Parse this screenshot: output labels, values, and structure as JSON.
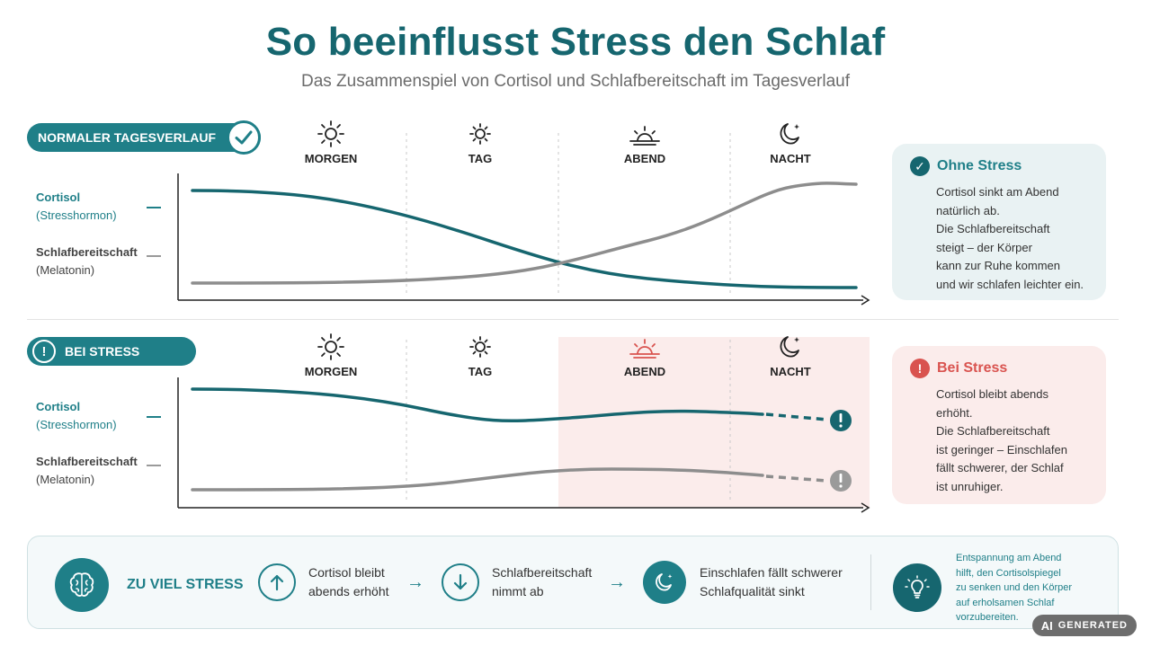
{
  "title": "So beeinflusst Stress den Schlaf",
  "subtitle": "Das Zusammenspiel von Cortisol und Schlafbereitschaft im Tagesverlauf",
  "colors": {
    "teal": "#1f7f88",
    "dark_teal": "#16666f",
    "gray": "#8a8a8a",
    "red": "#d9534f",
    "light_red": "#fbeceb"
  },
  "periods": [
    "MORGEN",
    "TAG",
    "ABEND",
    "NACHT"
  ],
  "period_icons": [
    "sun-icon",
    "small-sun-icon",
    "sunset-icon",
    "moon-stars-icon"
  ],
  "labels": {
    "cortisol": "Cortisol",
    "cortisol_sub": "(Stresshormon)",
    "sleep": "Schlafbereitschaft",
    "sleep_sub": "(Melatonin)"
  },
  "normal": {
    "pill": "NORMALER TAGESVERLAUF",
    "card_title": "Ohne Stress",
    "card_lines": [
      "Cortisol sinkt am Abend",
      "natürlich ab.",
      "Die Schlafbereitschaft",
      "steigt – der Körper",
      "kann zur Ruhe kommen",
      "und wir schlafen leichter ein."
    ]
  },
  "stress": {
    "pill": "BEI STRESS",
    "card_title": "Bei Stress",
    "card_lines": [
      "Cortisol bleibt abends",
      "erhöht.",
      "Die Schlafbereitschaft",
      "ist geringer – Einschlafen",
      "fällt schwerer, der Schlaf",
      "ist unruhiger."
    ]
  },
  "summary": {
    "headline": "ZU VIEL STRESS",
    "step1": [
      "Cortisol bleibt",
      "abends erhöht"
    ],
    "step2": [
      "Schlafbereitschaft",
      "nimmt ab"
    ],
    "step3": [
      "Einschlafen fällt schwerer",
      "Schlafqualität sinkt"
    ],
    "arrow": "→",
    "tip": [
      "Entspannung am Abend",
      "hilft, den Cortisolspiegel",
      "zu senken und den Körper",
      "auf erholsamen Schlaf",
      "vorzubereiten."
    ]
  },
  "badge": {
    "ai": "AI",
    "text": "GENERATED"
  }
}
